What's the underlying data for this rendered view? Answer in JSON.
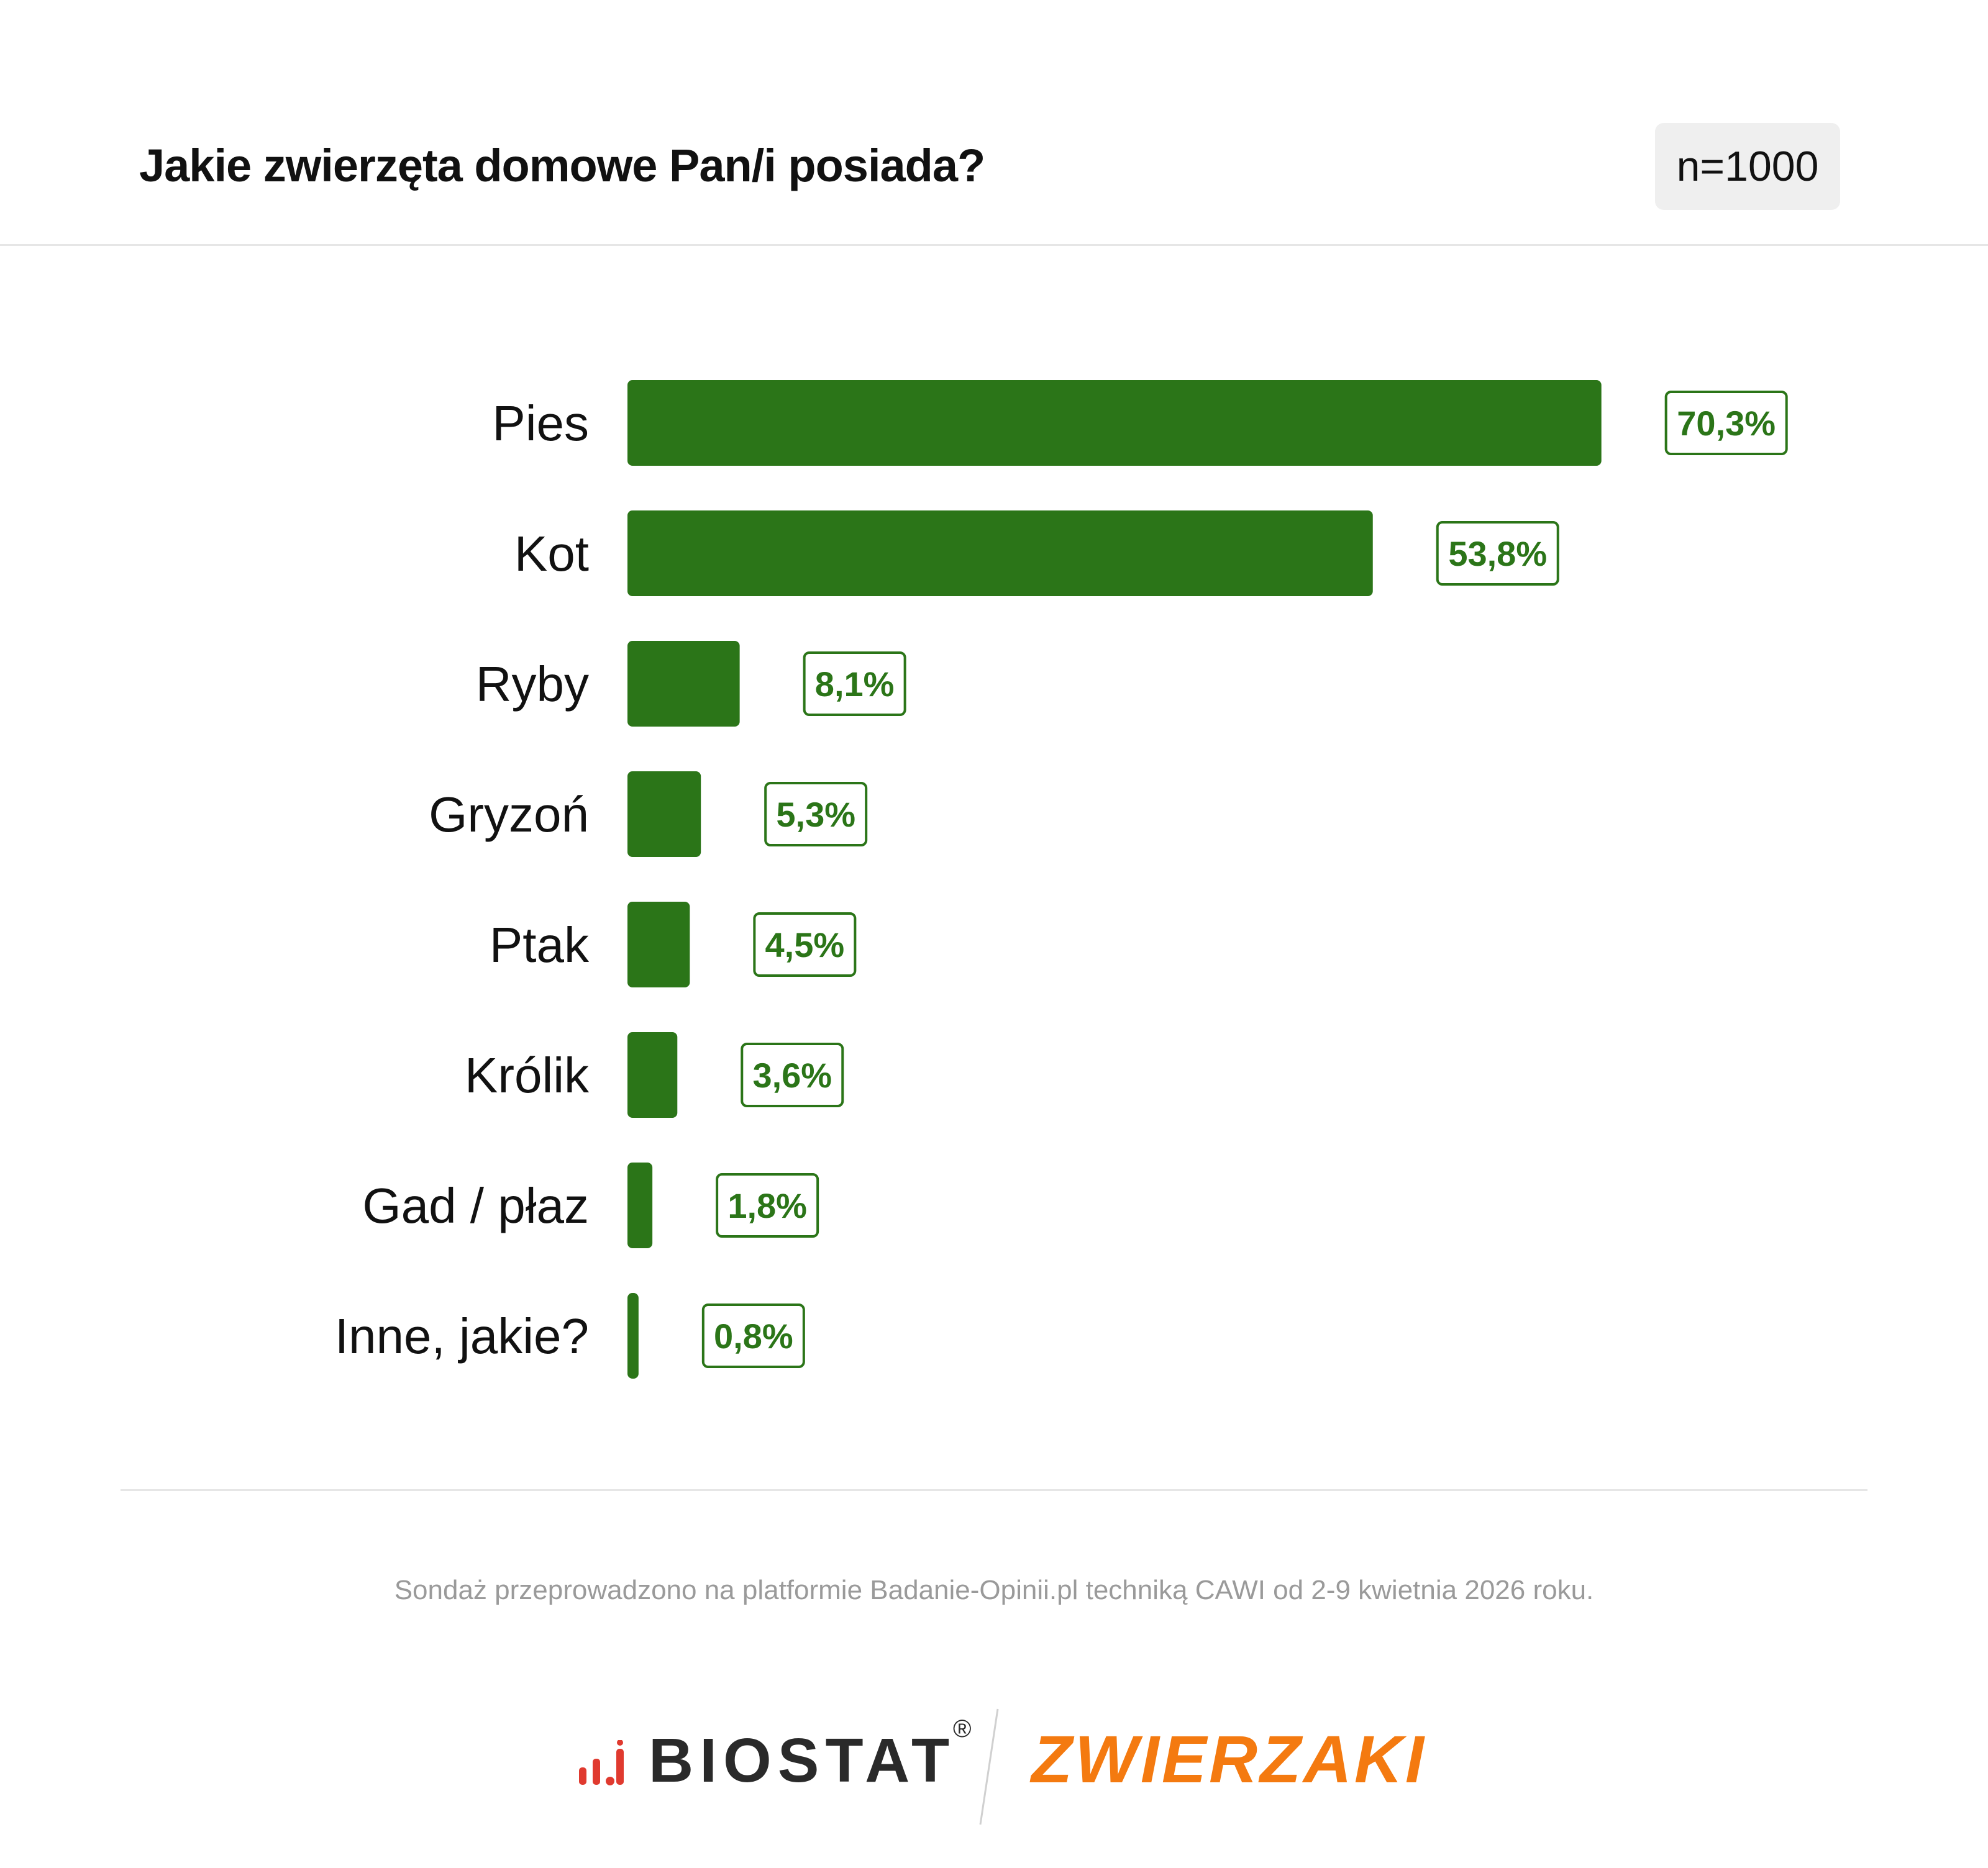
{
  "header": {
    "title": "Jakie zwierzęta domowe Pan/i posiada?",
    "sample": "n=1000"
  },
  "chart_data": {
    "type": "bar",
    "orientation": "horizontal",
    "categories": [
      "Pies",
      "Kot",
      "Ryby",
      "Gryzoń",
      "Ptak",
      "Królik",
      "Gad / płaz",
      "Inne, jakie?"
    ],
    "values": [
      70.3,
      53.8,
      8.1,
      5.3,
      4.5,
      3.6,
      1.8,
      0.8
    ],
    "value_labels": [
      "70,3%",
      "53,8%",
      "8,1%",
      "5,3%",
      "4,5%",
      "3,6%",
      "1,8%",
      "0,8%"
    ],
    "unit": "%",
    "xlim": [
      0,
      100
    ],
    "grid": false,
    "legend": "none",
    "bar_color": "#2b7518",
    "label_border_color": "#2b7518"
  },
  "footer": {
    "note": "Sondaż przeprowadzono na platformie Badanie-Opinii.pl techniką CAWI od 2-9 kwietnia 2026 roku."
  },
  "logos": {
    "biostat": {
      "text": "BIOSTAT",
      "reg": "®",
      "icon": "bar-signal-icon",
      "icon_color": "#e03a2f"
    },
    "zwierzaki": {
      "text": "ZWIERZAKI",
      "color": "#f47a10"
    }
  }
}
